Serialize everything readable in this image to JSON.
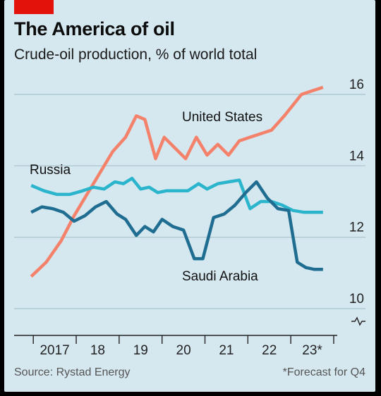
{
  "header": {
    "title": "The America of oil",
    "subtitle": "Crude-oil production, % of world total"
  },
  "footer": {
    "source": "Source: Rystad Energy",
    "note": "*Forecast for Q4"
  },
  "colors": {
    "background": "#d5e7ef",
    "brand_red": "#e3120b",
    "united_states": "#f4826b",
    "russia": "#2ab5cc",
    "saudi_arabia": "#1f6d91",
    "grid": "#a8c2cd",
    "axis": "#222222"
  },
  "chart_data": {
    "type": "line",
    "title": "The America of oil",
    "subtitle": "Crude-oil production, % of world total",
    "x_tick_labels": [
      "2017",
      "18",
      "19",
      "20",
      "21",
      "22",
      "23*"
    ],
    "x_ticks": [
      2017,
      2018,
      2019,
      2020,
      2021,
      2022,
      2023
    ],
    "xlim": [
      2016.8,
      2024.1
    ],
    "ylim": [
      10,
      16
    ],
    "y_ticks": [
      10,
      12,
      14,
      16
    ],
    "y_tick_labels": [
      "10",
      "12",
      "14",
      "16"
    ],
    "axis_break": true,
    "grid": true,
    "series": [
      {
        "name": "United States",
        "color_key": "united_states",
        "x": [
          2017.0,
          2017.35,
          2017.7,
          2018.0,
          2018.3,
          2018.6,
          2018.9,
          2019.2,
          2019.45,
          2019.65,
          2019.9,
          2020.1,
          2020.35,
          2020.6,
          2020.85,
          2021.1,
          2021.35,
          2021.6,
          2021.85,
          2022.1,
          2022.35,
          2022.6,
          2022.9,
          2023.1,
          2023.3,
          2023.55,
          2023.8
        ],
        "values": [
          10.9,
          11.3,
          11.9,
          12.6,
          13.2,
          13.8,
          14.4,
          14.8,
          15.4,
          15.3,
          14.2,
          14.8,
          14.5,
          14.2,
          14.8,
          14.3,
          14.6,
          14.3,
          14.7,
          14.8,
          14.9,
          15.0,
          15.4,
          15.7,
          16.0,
          16.1,
          16.2
        ]
      },
      {
        "name": "Russia",
        "color_key": "russia",
        "x": [
          2017.0,
          2017.3,
          2017.6,
          2017.9,
          2018.2,
          2018.45,
          2018.7,
          2018.95,
          2019.15,
          2019.35,
          2019.55,
          2019.75,
          2019.95,
          2020.15,
          2020.4,
          2020.65,
          2020.9,
          2021.1,
          2021.35,
          2021.6,
          2021.85,
          2022.1,
          2022.35,
          2022.6,
          2022.85,
          2023.1,
          2023.35,
          2023.6,
          2023.8
        ],
        "values": [
          13.45,
          13.3,
          13.2,
          13.2,
          13.3,
          13.4,
          13.35,
          13.55,
          13.5,
          13.65,
          13.35,
          13.4,
          13.25,
          13.3,
          13.3,
          13.3,
          13.5,
          13.35,
          13.5,
          13.55,
          13.6,
          12.8,
          13.0,
          13.0,
          12.9,
          12.75,
          12.7,
          12.7,
          12.7
        ]
      },
      {
        "name": "Saudi Arabia",
        "color_key": "saudi_arabia",
        "x": [
          2017.0,
          2017.25,
          2017.5,
          2017.75,
          2018.0,
          2018.25,
          2018.5,
          2018.75,
          2019.0,
          2019.2,
          2019.45,
          2019.65,
          2019.85,
          2020.05,
          2020.3,
          2020.55,
          2020.8,
          2021.0,
          2021.25,
          2021.5,
          2021.75,
          2022.0,
          2022.25,
          2022.5,
          2022.75,
          2023.0,
          2023.2,
          2023.4,
          2023.6,
          2023.8
        ],
        "values": [
          12.7,
          12.85,
          12.8,
          12.7,
          12.45,
          12.6,
          12.85,
          13.0,
          12.65,
          12.5,
          12.05,
          12.3,
          12.15,
          12.5,
          12.3,
          12.2,
          11.4,
          11.4,
          12.55,
          12.65,
          12.9,
          13.25,
          13.55,
          13.1,
          12.8,
          12.75,
          11.3,
          11.15,
          11.1,
          11.1
        ]
      }
    ]
  }
}
